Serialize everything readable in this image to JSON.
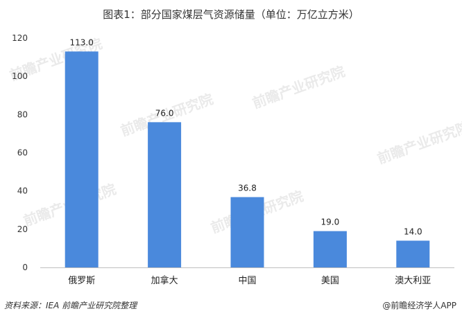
{
  "chart_data": {
    "type": "bar",
    "title": "图表1：部分国家煤层气资源储量（单位：万亿立方米）",
    "categories": [
      "俄罗斯",
      "加拿大",
      "中国",
      "美国",
      "澳大利亚"
    ],
    "values": [
      113.0,
      76.0,
      36.8,
      19.0,
      14.0
    ],
    "value_labels": [
      "113.0",
      "76.0",
      "36.8",
      "19.0",
      "14.0"
    ],
    "y_ticks": [
      "0",
      "20",
      "40",
      "60",
      "80",
      "100",
      "120"
    ],
    "ylim": [
      0,
      120
    ],
    "xlabel": "",
    "ylabel": "",
    "bar_color": "#4a89dc",
    "grid": false,
    "legend": "none"
  },
  "footer": {
    "source": "资料来源：IEA 前瞻产业研究院整理",
    "credit": "@前瞻经济学人APP"
  },
  "watermark_text": "前瞻产业研究院"
}
